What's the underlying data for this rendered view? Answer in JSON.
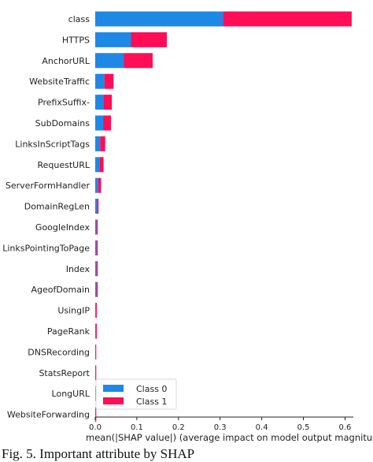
{
  "caption": "Fig. 5.   Important attribute by SHAP",
  "chart_data": {
    "type": "bar",
    "orientation": "horizontal",
    "stacked": true,
    "title": "",
    "xlabel": "mean(|SHAP value|) (average impact on model output magnitude)",
    "ylabel": "",
    "xlim": [
      0,
      0.62
    ],
    "xticks": [
      0.0,
      0.1,
      0.2,
      0.3,
      0.4,
      0.5,
      0.6
    ],
    "xtick_labels": [
      "0.0",
      "0.1",
      "0.2",
      "0.3",
      "0.4",
      "0.5",
      "0.6"
    ],
    "grid": false,
    "legend": "bottom-center",
    "categories": [
      "class",
      "HTTPS",
      "AnchorURL",
      "WebsiteTraffic",
      "PrefixSuffix-",
      "SubDomains",
      "LinksInScriptTags",
      "RequestURL",
      "ServerFormHandler",
      "DomainRegLen",
      "GoogleIndex",
      "LinksPointingToPage",
      "Index",
      "AgeofDomain",
      "UsingIP",
      "PageRank",
      "DNSRecording",
      "StatsReport",
      "LongURL",
      "WebsiteForwarding"
    ],
    "series": [
      {
        "name": "Class 0",
        "color": "#1e88e5",
        "values": [
          0.307,
          0.086,
          0.069,
          0.022,
          0.02,
          0.019,
          0.012,
          0.01,
          0.007,
          0.004,
          0.003,
          0.003,
          0.003,
          0.003,
          0.002,
          0.002,
          0.001,
          0.001,
          0.001,
          0.001
        ]
      },
      {
        "name": "Class 1",
        "color": "#ff0d57",
        "values": [
          0.309,
          0.086,
          0.069,
          0.022,
          0.02,
          0.019,
          0.012,
          0.01,
          0.007,
          0.004,
          0.003,
          0.003,
          0.003,
          0.003,
          0.002,
          0.002,
          0.001,
          0.001,
          0.001,
          0.001
        ]
      }
    ]
  }
}
